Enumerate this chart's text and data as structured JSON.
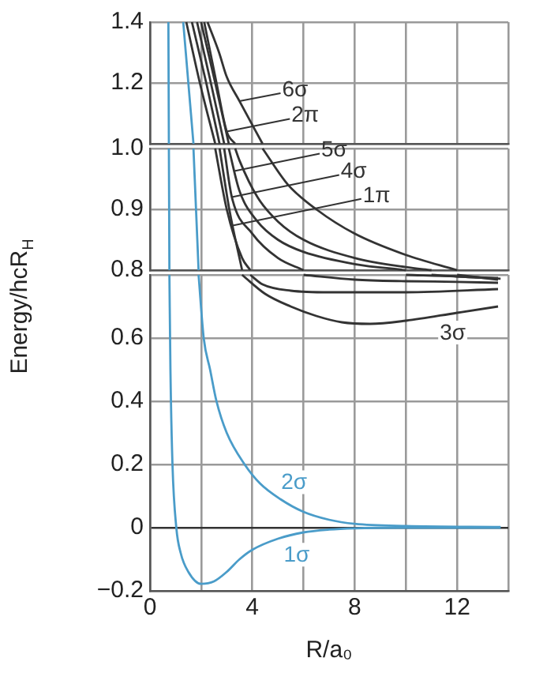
{
  "chart_data": [
    {
      "type": "line",
      "tick_labels": "y",
      "xlim": [
        0,
        14
      ],
      "xticks": [
        0,
        {
          "value": 2,
          "label": null
        },
        4,
        {
          "value": 6,
          "label": null
        },
        8,
        {
          "value": 10,
          "label": null
        },
        12,
        {
          "value": 14,
          "label": null
        }
      ],
      "ylim": [
        1.0,
        1.4
      ],
      "yticks": [
        {
          "value": 1,
          "label": null
        },
        1.2,
        1.4
      ],
      "grid": true,
      "legend": false,
      "marker": "none",
      "line_style": "solid",
      "series": [
        {
          "color": "#4a9cc9",
          "x": [
            0.72,
            0.74
          ],
          "values": [
            1.4,
            1.0
          ]
        },
        {
          "color": "#4a9cc9",
          "x": [
            1.3,
            1.5,
            1.7
          ],
          "values": [
            1.4,
            1.2,
            1.0
          ]
        },
        {
          "color": "#333333",
          "x": [
            1.64,
            2.2,
            2.72
          ],
          "values": [
            1.4,
            1.2,
            1.0
          ]
        },
        {
          "color": "#333333",
          "x": [
            1.42,
            1.95,
            2.55
          ],
          "values": [
            1.4,
            1.2,
            1.0
          ]
        },
        {
          "color": "#333333",
          "x": [
            1.84,
            2.38,
            2.9
          ],
          "values": [
            1.4,
            1.2,
            1.0
          ]
        },
        {
          "color": "#333333",
          "x": [
            2.0,
            2.55,
            3.08
          ],
          "values": [
            1.4,
            1.2,
            1.0
          ]
        },
        {
          "color": "#333333",
          "x": [
            2.12,
            2.6,
            3.0,
            3.33
          ],
          "values": [
            1.4,
            1.2,
            1.04,
            1.0
          ]
        },
        {
          "color": "#333333",
          "x": [
            2.25,
            2.7,
            3.0,
            3.5,
            4.4
          ],
          "values": [
            1.4,
            1.3,
            1.22,
            1.14,
            1.0
          ]
        }
      ],
      "annotations": [
        {
          "text": "6σ",
          "x": 3.5,
          "y": 1.14
        },
        {
          "text": "2π",
          "x": 3.0,
          "y": 1.04
        }
      ]
    },
    {
      "type": "line",
      "tick_labels": "y",
      "xlim": [
        0,
        14
      ],
      "xticks": [
        0,
        {
          "value": 2,
          "label": null
        },
        4,
        {
          "value": 6,
          "label": null
        },
        8,
        {
          "value": 10,
          "label": null
        },
        12,
        {
          "value": 14,
          "label": null
        }
      ],
      "ylim": [
        0.8,
        1.0
      ],
      "yticks": [
        0.8,
        0.9,
        {
          "value": 1,
          "label": "1.0"
        }
      ],
      "grid": true,
      "legend": false,
      "marker": "none",
      "line_style": "solid",
      "series": [
        {
          "color": "#4a9cc9",
          "x": [
            0.74,
            0.76
          ],
          "values": [
            1.0,
            0.8
          ]
        },
        {
          "color": "#4a9cc9",
          "x": [
            1.7,
            1.8,
            1.9
          ],
          "values": [
            1.0,
            0.9,
            0.8
          ]
        },
        {
          "color": "#333333",
          "x": [
            2.72,
            3.1,
            3.6
          ],
          "values": [
            1.0,
            0.9,
            0.8
          ]
        },
        {
          "color": "#333333",
          "x": [
            2.55,
            3.0,
            3.6,
            3.92
          ],
          "values": [
            1.0,
            0.9,
            0.82,
            0.8
          ]
        },
        {
          "color": "#333333",
          "x": [
            2.9,
            3.2,
            4,
            5,
            6
          ],
          "values": [
            1.0,
            0.92,
            0.86,
            0.82,
            0.8
          ]
        },
        {
          "color": "#333333",
          "x": [
            3.08,
            3.5,
            4.2,
            5,
            6,
            8,
            10
          ],
          "values": [
            1.0,
            0.93,
            0.88,
            0.85,
            0.83,
            0.81,
            0.8
          ]
        },
        {
          "color": "#333333",
          "x": [
            3.33,
            3.5,
            4.2,
            5,
            6,
            8,
            10,
            11
          ],
          "values": [
            1.0,
            0.98,
            0.92,
            0.88,
            0.85,
            0.82,
            0.805,
            0.8
          ]
        },
        {
          "color": "#333333",
          "x": [
            4.4,
            5.4,
            6.5,
            8,
            10,
            12
          ],
          "values": [
            1.0,
            0.94,
            0.9,
            0.86,
            0.825,
            0.8
          ]
        }
      ],
      "annotations": [
        {
          "text": "5σ",
          "x": 3.3,
          "y": 0.963
        },
        {
          "text": "4σ",
          "x": 3.2,
          "y": 0.92
        },
        {
          "text": "1π",
          "x": 3.2,
          "y": 0.873
        }
      ]
    },
    {
      "type": "line",
      "xlabel": "R/a₀",
      "ylabel": "Energy/hcR$_{H}$",
      "xlim": [
        0,
        14
      ],
      "xticks": [
        0,
        {
          "value": 2,
          "label": null
        },
        4,
        {
          "value": 6,
          "label": null
        },
        8,
        {
          "value": 10,
          "label": null
        },
        12,
        {
          "value": 14,
          "label": null
        }
      ],
      "ylim": [
        -0.2,
        0.8
      ],
      "yticks": [
        {
          "value": -0.2,
          "label": "−0.2"
        },
        0,
        0.2,
        0.4,
        0.6,
        {
          "value": 0.8,
          "label": null
        }
      ],
      "grid": true,
      "legend": false,
      "marker": "none",
      "line_style": "solid",
      "series": [
        {
          "color": "#4a9cc9",
          "x": [
            0.76,
            0.8,
            0.88,
            1.03,
            1.2,
            1.5,
            2.0,
            2.5,
            3,
            3.5,
            4,
            5,
            6,
            7,
            8,
            10,
            13.7
          ],
          "values": [
            0.8,
            0.5,
            0.2,
            0,
            -0.08,
            -0.14,
            -0.178,
            -0.17,
            -0.14,
            -0.1,
            -0.07,
            -0.035,
            -0.015,
            -0.006,
            -0.002,
            0,
            0
          ]
        },
        {
          "color": "#4a9cc9",
          "x": [
            1.9,
            2.1,
            2.35,
            2.6,
            3.0,
            3.7,
            4.3,
            5.1,
            6,
            7,
            8,
            10,
            13.7
          ],
          "values": [
            0.8,
            0.6,
            0.5,
            0.4,
            0.3,
            0.2,
            0.14,
            0.09,
            0.05,
            0.025,
            0.012,
            0.005,
            0.002
          ]
        },
        {
          "color": "#333333",
          "x": [
            3.6,
            4.5,
            5.5,
            6.5,
            7.5,
            8.6,
            10,
            12,
            13.6
          ],
          "values": [
            0.8,
            0.74,
            0.7,
            0.67,
            0.65,
            0.645,
            0.655,
            0.68,
            0.7
          ]
        },
        {
          "color": "#333333",
          "x": [
            3.92,
            4.4,
            5.5,
            7,
            10,
            13.6
          ],
          "values": [
            0.8,
            0.77,
            0.75,
            0.745,
            0.745,
            0.755
          ]
        },
        {
          "color": "#333333",
          "x": [
            6,
            8,
            10,
            12,
            13.6
          ],
          "values": [
            0.8,
            0.785,
            0.78,
            0.778,
            0.775
          ]
        },
        {
          "color": "#333333",
          "x": [
            10,
            12,
            13.7
          ],
          "values": [
            0.8,
            0.795,
            0.788
          ]
        },
        {
          "color": "#333333",
          "x": [
            11,
            12,
            13.6
          ],
          "values": [
            0.8,
            0.795,
            0.79
          ]
        },
        {
          "color": "#333333",
          "x": [
            12,
            13.6
          ],
          "values": [
            0.8,
            0.785
          ]
        }
      ],
      "annotations": [
        {
          "text": "3σ",
          "x": 11.2,
          "y": 0.67
        },
        {
          "text": "2σ",
          "x": 5.0,
          "y": 0.096
        },
        {
          "text": "1σ",
          "x": 5.1,
          "y": -0.033
        }
      ]
    }
  ]
}
